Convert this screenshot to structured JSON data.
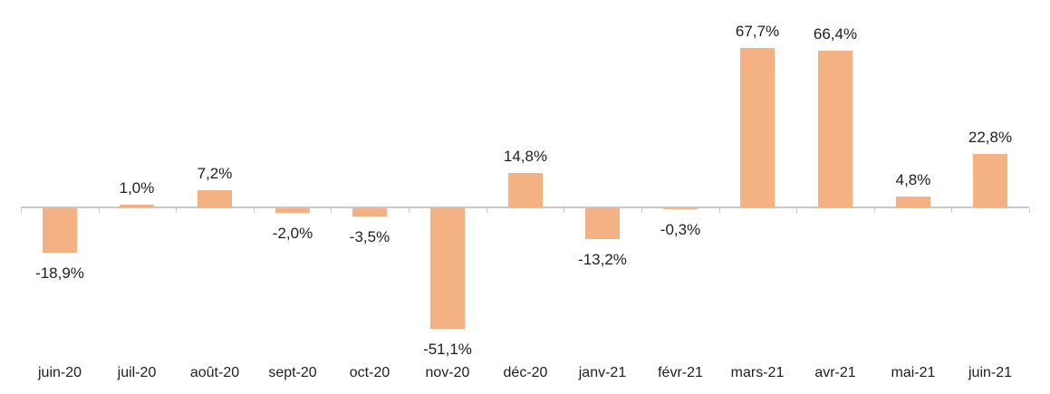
{
  "chart_data": {
    "type": "bar",
    "title": "",
    "xlabel": "",
    "ylabel": "",
    "categories": [
      "juin-20",
      "juil-20",
      "août-20",
      "sept-20",
      "oct-20",
      "nov-20",
      "déc-20",
      "janv-21",
      "févr-21",
      "mars-21",
      "avr-21",
      "mai-21",
      "juin-21"
    ],
    "values": [
      -18.9,
      1.0,
      7.2,
      -2.0,
      -3.5,
      -51.1,
      14.8,
      -13.2,
      -0.3,
      67.7,
      66.4,
      4.8,
      22.8
    ],
    "value_labels": [
      "-18,9%",
      "1,0%",
      "7,2%",
      "-2,0%",
      "-3,5%",
      "-51,1%",
      "14,8%",
      "-13,2%",
      "-0,3%",
      "67,7%",
      "66,4%",
      "4,8%",
      "22,8%"
    ],
    "unit": "%",
    "ylim": [
      -60,
      85
    ],
    "grid": false,
    "legend": null,
    "y_axis_visible": false,
    "colors": {
      "bar_fill": "#F4B183",
      "axis_line": "#C9C9C9",
      "text": "#1E1E1E",
      "background": "#FFFFFF"
    }
  }
}
